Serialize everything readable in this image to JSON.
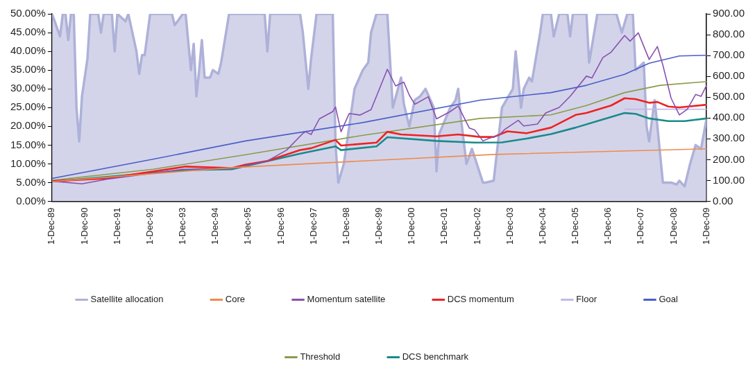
{
  "chart_data": {
    "type": "line",
    "legend": "bottom",
    "marker": "none",
    "xlim": [
      "1989-12-01",
      "2009-12-01"
    ],
    "xticks": [
      {
        "value": "1989-12-01",
        "label": "1-Dec-89"
      },
      {
        "value": "1990-12-01",
        "label": "1-Dec-90"
      },
      {
        "value": "1991-12-01",
        "label": "1-Dec-91"
      },
      {
        "value": "1992-12-01",
        "label": "1-Dec-92"
      },
      {
        "value": "1993-12-01",
        "label": "1-Dec-93"
      },
      {
        "value": "1994-12-01",
        "label": "1-Dec-94"
      },
      {
        "value": "1995-12-01",
        "label": "1-Dec-95"
      },
      {
        "value": "1996-12-01",
        "label": "1-Dec-96"
      },
      {
        "value": "1997-12-01",
        "label": "1-Dec-97"
      },
      {
        "value": "1998-12-01",
        "label": "1-Dec-98"
      },
      {
        "value": "1999-12-01",
        "label": "1-Dec-99"
      },
      {
        "value": "2000-12-01",
        "label": "1-Dec-00"
      },
      {
        "value": "2001-12-01",
        "label": "1-Dec-01"
      },
      {
        "value": "2002-12-01",
        "label": "1-Dec-02"
      },
      {
        "value": "2003-12-01",
        "label": "1-Dec-03"
      },
      {
        "value": "2004-12-01",
        "label": "1-Dec-04"
      },
      {
        "value": "2005-12-01",
        "label": "1-Dec-05"
      },
      {
        "value": "2006-12-01",
        "label": "1-Dec-06"
      },
      {
        "value": "2007-12-01",
        "label": "1-Dec-07"
      },
      {
        "value": "2008-12-01",
        "label": "1-Dec-08"
      },
      {
        "value": "2009-12-01",
        "label": "1-Dec-09"
      }
    ],
    "ylim": [
      0,
      50
    ],
    "yticks": [
      {
        "value": 0,
        "label": "0.00%"
      },
      {
        "value": 5,
        "label": "5.00%"
      },
      {
        "value": 10,
        "label": "10.00%"
      },
      {
        "value": 15,
        "label": "15.00%"
      },
      {
        "value": 20,
        "label": "20.00%"
      },
      {
        "value": 25,
        "label": "25.00%"
      },
      {
        "value": 30,
        "label": "30.00%"
      },
      {
        "value": 35,
        "label": "35.00%"
      },
      {
        "value": 40,
        "label": "40.00%"
      },
      {
        "value": 45,
        "label": "45.00%"
      },
      {
        "value": 50,
        "label": "50.00%"
      }
    ],
    "y2lim": [
      0,
      900
    ],
    "y2ticks": [
      {
        "value": 0,
        "label": "0.00"
      },
      {
        "value": 100,
        "label": "100.00"
      },
      {
        "value": 200,
        "label": "200.00"
      },
      {
        "value": 300,
        "label": "300.00"
      },
      {
        "value": 400,
        "label": "400.00"
      },
      {
        "value": 500,
        "label": "500.00"
      },
      {
        "value": 600,
        "label": "600.00"
      },
      {
        "value": 700,
        "label": "700.00"
      },
      {
        "value": 800,
        "label": "800.00"
      },
      {
        "value": 900,
        "label": "900.00"
      }
    ],
    "series": [
      {
        "name": "Satellite allocation",
        "type": "area",
        "color": "#aeb1d8",
        "x": [
          "1989-12",
          "1990-01",
          "1990-03",
          "1990-04",
          "1990-05",
          "1990-06",
          "1990-07",
          "1990-08",
          "1990-09",
          "1990-10",
          "1990-11",
          "1991-01",
          "1991-02",
          "1991-05",
          "1991-06",
          "1991-07",
          "1991-10",
          "1991-11",
          "1991-12",
          "1992-03",
          "1992-04",
          "1992-07",
          "1992-08",
          "1992-09",
          "1992-10",
          "1992-12",
          "1993-08",
          "1993-09",
          "1993-12",
          "1994-01",
          "1994-03",
          "1994-04",
          "1994-05",
          "1994-06",
          "1994-07",
          "1994-08",
          "1994-10",
          "1994-11",
          "1995-01",
          "1995-02",
          "1995-05",
          "1996-06",
          "1996-07",
          "1996-08",
          "1997-07",
          "1997-08",
          "1997-10",
          "1997-11",
          "1998-01",
          "1998-07",
          "1998-08",
          "1998-09",
          "1998-11",
          "1999-01",
          "1999-03",
          "1999-06",
          "1999-08",
          "1999-09",
          "1999-11",
          "2000-03",
          "2000-05",
          "2000-08",
          "2000-09",
          "2000-11",
          "2001-01",
          "2001-03",
          "2001-05",
          "2001-08",
          "2001-09",
          "2001-10",
          "2002-02",
          "2002-04",
          "2002-05",
          "2002-06",
          "2002-08",
          "2002-10",
          "2003-02",
          "2003-03",
          "2003-06",
          "2003-09",
          "2004-01",
          "2004-02",
          "2004-04",
          "2004-05",
          "2004-07",
          "2004-08",
          "2004-11",
          "2004-12",
          "2005-03",
          "2005-04",
          "2005-06",
          "2005-09",
          "2005-10",
          "2005-11",
          "2006-04",
          "2006-05",
          "2006-08",
          "2007-03",
          "2007-05",
          "2007-07",
          "2007-09",
          "2007-10",
          "2008-01",
          "2008-02",
          "2008-03",
          "2008-05",
          "2008-06",
          "2008-08",
          "2008-11",
          "2009-01",
          "2009-02",
          "2009-04",
          "2009-06",
          "2009-08",
          "2009-10",
          "2009-12"
        ],
        "values": [
          50,
          48,
          44,
          50,
          50,
          43,
          50,
          50,
          25,
          16,
          28,
          38,
          50,
          50,
          45,
          50,
          50,
          40,
          50,
          48,
          50,
          40,
          34,
          39,
          39,
          50,
          50,
          47,
          50,
          50,
          35,
          42,
          28,
          35,
          43,
          33,
          33,
          35,
          34,
          37,
          50,
          50,
          40,
          50,
          50,
          45,
          30,
          38,
          50,
          50,
          15,
          5,
          10,
          20,
          30,
          35,
          37,
          45,
          50,
          50,
          25,
          33,
          26,
          20,
          27,
          28,
          30,
          25,
          8,
          18,
          25,
          27,
          30,
          22,
          10,
          14,
          5,
          5,
          5.5,
          25,
          30,
          40,
          25,
          30,
          33,
          32,
          45,
          50,
          50,
          44,
          50,
          50,
          44,
          50,
          50,
          37,
          50,
          50,
          45,
          50,
          50,
          35,
          37,
          20,
          16,
          27,
          20,
          5,
          5,
          4.5,
          5.5,
          4,
          10,
          15,
          14,
          22
        ]
      },
      {
        "name": "Core",
        "axis": "y2",
        "color": "#f08a4b",
        "x": [
          "1989-12",
          "1995-06",
          "1999-06",
          "2003-06",
          "2009-12"
        ],
        "values": [
          95,
          162,
          194,
          225,
          252
        ]
      },
      {
        "name": "Momentum satellite",
        "axis": "y2",
        "color": "#8a4fb0",
        "x": [
          "1989-12",
          "1990-11",
          "1991-08",
          "1993-12",
          "1995-06",
          "1996-07",
          "1997-02",
          "1997-08",
          "1997-09",
          "1997-11",
          "1998-02",
          "1998-07",
          "1998-08",
          "1998-10",
          "1999-01",
          "1999-05",
          "1999-09",
          "2000-03",
          "2000-06",
          "2000-09",
          "2000-11",
          "2001-01",
          "2001-06",
          "2001-09",
          "2002-02",
          "2002-05",
          "2002-09",
          "2002-11",
          "2003-02",
          "2003-04",
          "2003-08",
          "2003-10",
          "2004-03",
          "2004-05",
          "2004-10",
          "2005-01",
          "2005-06",
          "2005-10",
          "2006-04",
          "2006-06",
          "2006-10",
          "2007-01",
          "2007-06",
          "2007-08",
          "2007-11",
          "2008-03",
          "2008-06",
          "2008-08",
          "2008-11",
          "2009-02",
          "2009-05",
          "2009-08",
          "2009-10",
          "2009-12"
        ],
        "values": [
          97,
          84,
          106,
          154,
          158,
          194,
          246,
          326,
          334,
          321,
          396,
          431,
          453,
          334,
          422,
          414,
          440,
          634,
          554,
          572,
          510,
          466,
          502,
          396,
          431,
          458,
          352,
          343,
          290,
          301,
          318,
          345,
          389,
          362,
          371,
          424,
          451,
          504,
          601,
          592,
          690,
          716,
          796,
          769,
          809,
          681,
          743,
          654,
          495,
          415,
          442,
          513,
          504,
          557
        ]
      },
      {
        "name": "DCS momentum",
        "axis": "y2",
        "color": "#ee2222",
        "x": [
          "1989-12",
          "1991-08",
          "1994-01",
          "1995-06",
          "1995-11",
          "1996-07",
          "1997-07",
          "1997-11",
          "1998-08",
          "1998-10",
          "1999-11",
          "2000-03",
          "2000-08",
          "2001-09",
          "2002-05",
          "2003-01",
          "2003-06",
          "2003-11",
          "2004-06",
          "2005-03",
          "2005-12",
          "2006-04",
          "2007-01",
          "2007-06",
          "2007-10",
          "2008-03",
          "2008-06",
          "2008-10",
          "2009-02",
          "2009-12"
        ],
        "values": [
          97,
          110,
          167,
          160,
          176,
          194,
          246,
          255,
          295,
          268,
          282,
          334,
          321,
          312,
          321,
          309,
          309,
          336,
          327,
          354,
          415,
          424,
          460,
          495,
          491,
          473,
          477,
          455,
          451,
          464
        ]
      },
      {
        "name": "Floor",
        "axis": "y2",
        "color": "#c4b8e6",
        "x": [
          "2007-06",
          "2009-12"
        ],
        "values": [
          442,
          442
        ]
      },
      {
        "name": "Goal",
        "axis": "y2",
        "color": "#4a5ec8",
        "x": [
          "1989-12",
          "1993-01",
          "1995-11",
          "1999-06",
          "2003-01",
          "2005-03",
          "2006-04",
          "2007-06",
          "2008-03",
          "2009-02",
          "2009-12"
        ],
        "values": [
          110,
          202,
          290,
          378,
          486,
          522,
          557,
          610,
          663,
          698,
          701
        ]
      },
      {
        "name": "Threshold",
        "axis": "y2",
        "color": "#8c9a4a",
        "x": [
          "1989-12",
          "1993-01",
          "1995-11",
          "1999-06",
          "2003-01",
          "2005-03",
          "2006-04",
          "2007-06",
          "2008-07",
          "2009-12"
        ],
        "values": [
          101,
          154,
          224,
          317,
          398,
          415,
          460,
          522,
          557,
          575
        ]
      },
      {
        "name": "DCS benchmark",
        "axis": "y2",
        "color": "#1a8a8a",
        "x": [
          "1989-12",
          "1994-01",
          "1995-06",
          "1997-07",
          "1998-08",
          "1998-10",
          "1999-11",
          "2000-03",
          "2001-09",
          "2002-11",
          "2003-09",
          "2004-06",
          "2005-03",
          "2005-12",
          "2006-09",
          "2007-06",
          "2007-10",
          "2008-03",
          "2008-10",
          "2009-04",
          "2009-12"
        ],
        "values": [
          95,
          150,
          154,
          229,
          264,
          246,
          264,
          308,
          290,
          282,
          283,
          301,
          323,
          354,
          389,
          424,
          420,
          398,
          385,
          385,
          398
        ]
      }
    ]
  }
}
